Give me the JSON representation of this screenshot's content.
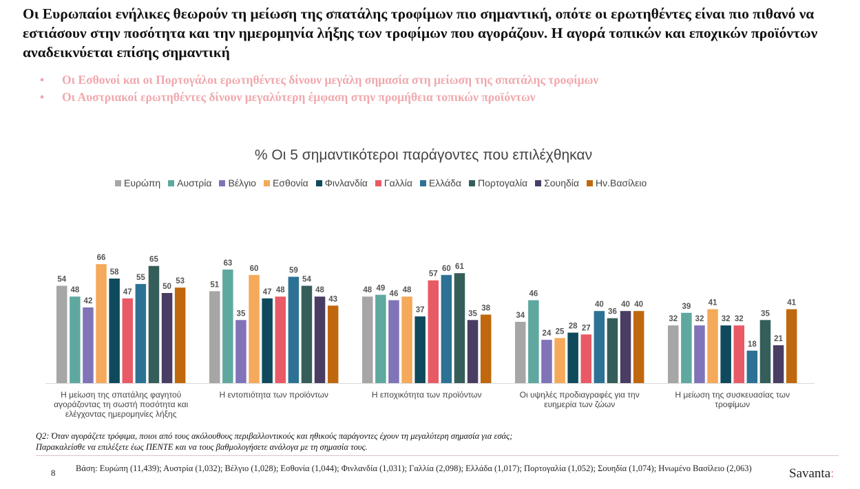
{
  "headline": "Οι Ευρωπαίοι ενήλικες θεωρούν τη μείωση της σπατάλης τροφίμων πιο σημαντική, οπότε οι ερωτηθέντες είναι πιο πιθανό να εστιάσουν στην ποσότητα και την ημερομηνία λήξης των τροφίμων που αγοράζουν. Η αγορά τοπικών και εποχικών προϊόντων αναδεικνύεται επίσης σημαντική",
  "bullets": [
    "Οι Εσθονοί και οι Πορτογάλοι ερωτηθέντες δίνουν μεγάλη σημασία στη μείωση της σπατάλης τροφίμων",
    "Οι Αυστριακοί ερωτηθέντες δίνουν μεγαλύτερη έμφαση στην προμήθεια τοπικών προϊόντων"
  ],
  "bullet_marker": "•",
  "chart_data": {
    "type": "bar",
    "title": "% Οι 5 σημαντικότεροι παράγοντες που επιλέχθηκαν",
    "legend_position": "top",
    "grid": false,
    "ylim": [
      0,
      75
    ],
    "categories": [
      [
        "Η μείωση της σπατάλης φαγητού",
        "αγοράζοντας τη σωστή ποσότητα και",
        "ελέγχοντας ημερομηνίες λήξης"
      ],
      [
        "Η εντοπιότητα των προϊόντων"
      ],
      [
        "Η εποχικότητα των προϊόντων"
      ],
      [
        "Οι υψηλές προδιαγραφές για την",
        "ευημερία των ζώων"
      ],
      [
        "Η μείωση της συσκευασίας των",
        "τροφίμων"
      ]
    ],
    "series": [
      {
        "name": "Ευρώπη",
        "color": "#a6a6a6",
        "values": [
          54,
          51,
          48,
          34,
          32
        ]
      },
      {
        "name": "Αυστρία",
        "color": "#5fa8a0",
        "values": [
          48,
          63,
          49,
          46,
          39
        ]
      },
      {
        "name": "Βέλγιο",
        "color": "#8073b8",
        "values": [
          42,
          35,
          46,
          24,
          32
        ]
      },
      {
        "name": "Εσθονία",
        "color": "#f5a95a",
        "values": [
          66,
          60,
          48,
          25,
          41
        ]
      },
      {
        "name": "Φινλανδία",
        "color": "#0f4a5c",
        "values": [
          58,
          47,
          37,
          28,
          32
        ]
      },
      {
        "name": "Γαλλία",
        "color": "#e85a65",
        "values": [
          47,
          48,
          57,
          27,
          32
        ]
      },
      {
        "name": "Ελλάδα",
        "color": "#2d7294",
        "values": [
          55,
          59,
          60,
          40,
          18
        ]
      },
      {
        "name": "Πορτογαλία",
        "color": "#355e5a",
        "values": [
          65,
          54,
          61,
          36,
          35
        ]
      },
      {
        "name": "Σουηδία",
        "color": "#4a3d63",
        "values": [
          50,
          48,
          35,
          40,
          21
        ]
      },
      {
        "name": "Ην.Βασίλειο",
        "color": "#c0680e",
        "values": [
          53,
          43,
          38,
          40,
          41
        ]
      }
    ]
  },
  "footnote": {
    "line1": "Q2: Όταν αγοράζετε τρόφιμα, ποιοι από τους ακόλουθους περιβαλλοντικούς και ηθικούς παράγοντες έχουν τη μεγαλύτερη σημασία για εσάς;",
    "line2": "Παρακαλείσθε να επιλέξετε έως ΠΕΝΤΕ και να τους βαθμολογήσετε ανάλογα με τη σημασία τους."
  },
  "page_number": "8",
  "base_text": "Βάση: Ευρώπη (11,439); Αυστρία (1,032); Βέλγιο (1,028); Εσθονία (1,044); Φινλανδία (1,031); Γαλλία (2,098); Ελλάδα (1,017); Πορτογαλία (1,052); Σουηδία (1,074); Ηνωμένο Βασίλειο (2,063)",
  "brand": {
    "name": "Savanta",
    "mark": ":"
  }
}
